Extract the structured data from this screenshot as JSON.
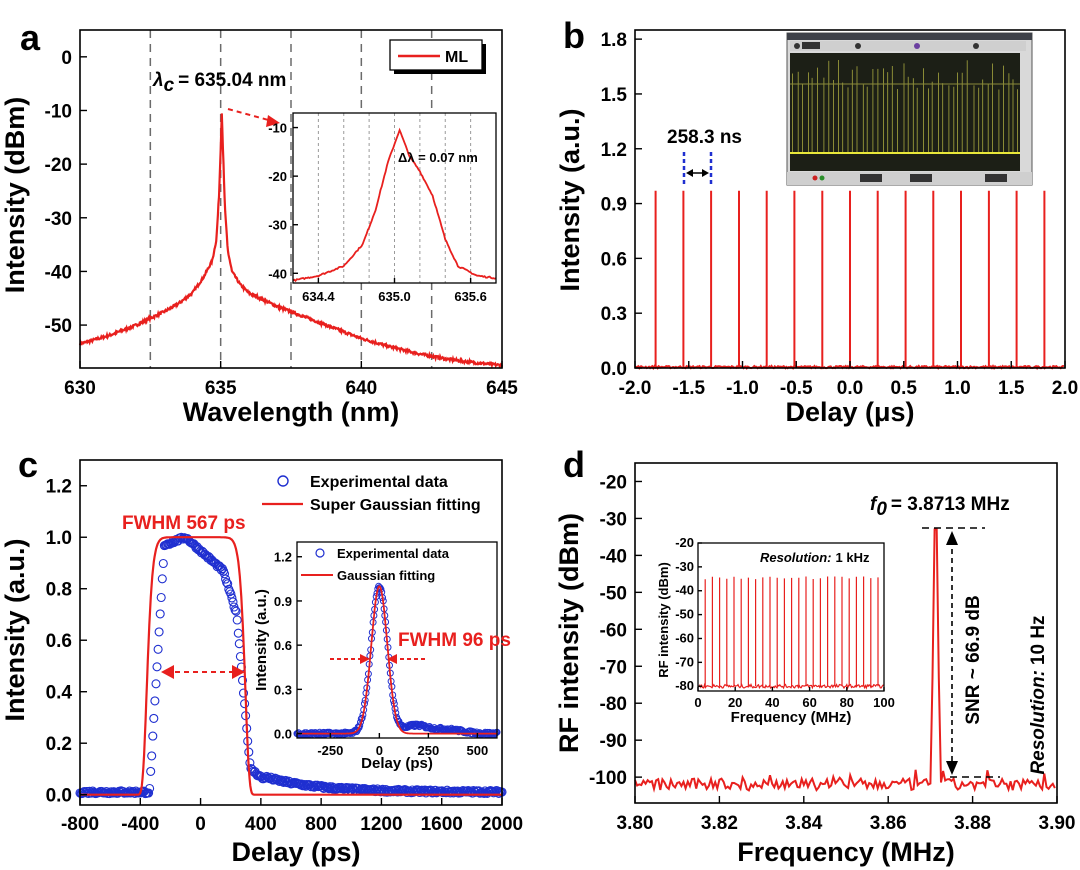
{
  "colors": {
    "data_red": "#e8201e",
    "data_blue": "#1f2fd0",
    "guide_gray": "#6b6b6b"
  },
  "chart_data": [
    {
      "panel": "a",
      "type": "line",
      "xlabel": "Wavelength (nm)",
      "ylabel": "Intensity (dBm)",
      "xlim": [
        630,
        645
      ],
      "ylim": [
        -58,
        5
      ],
      "xticks": [
        630,
        635,
        640,
        645
      ],
      "yticks": [
        0,
        -10,
        -20,
        -30,
        -40,
        -50
      ],
      "dashed_verticals": [
        632.5,
        635,
        637.5,
        640,
        642.5
      ],
      "series": [
        {
          "name": "ML",
          "x": [
            630,
            631,
            632,
            633,
            633.5,
            634,
            634.4,
            634.7,
            634.85,
            634.95,
            635.04,
            635.15,
            635.25,
            635.4,
            635.7,
            636,
            637,
            638,
            639,
            640,
            641,
            642,
            643,
            644,
            645
          ],
          "y": [
            -53.5,
            -52,
            -50,
            -47.5,
            -46,
            -44,
            -41,
            -38,
            -34,
            -25,
            -10.5,
            -28,
            -36,
            -40,
            -42.5,
            -44,
            -46.5,
            -48.5,
            -50.5,
            -52.5,
            -54,
            -55.3,
            -56.3,
            -57,
            -57.5
          ]
        }
      ],
      "annotations": {
        "peak_label": "= 635.04 nm",
        "lambda_symbol": "λ",
        "lambda_sub": "c"
      },
      "inset": {
        "xlim": [
          634.2,
          635.8
        ],
        "ylim": [
          -42,
          -7
        ],
        "xticks": [
          634.4,
          635.0,
          635.6
        ],
        "yticks": [
          -10,
          -20,
          -30,
          -40
        ],
        "x": [
          634.2,
          634.4,
          634.6,
          634.75,
          634.85,
          634.95,
          635.04,
          635.12,
          635.2,
          635.3,
          635.4,
          635.5,
          635.65,
          635.8
        ],
        "y": [
          -41.5,
          -40.5,
          -38.5,
          -34,
          -27,
          -17,
          -10.5,
          -16,
          -19,
          -24,
          -33,
          -38.5,
          -40.5,
          -41
        ],
        "label": "Δλ = 0.07 nm"
      }
    },
    {
      "panel": "b",
      "type": "line",
      "xlabel": "Delay (μs)",
      "ylabel": "Intensity (a.u.)",
      "xlim": [
        -2.0,
        2.0
      ],
      "ylim": [
        0,
        1.85
      ],
      "xticks": [
        -2.0,
        -1.5,
        -1.0,
        -0.5,
        0.0,
        0.5,
        1.0,
        1.5,
        2.0
      ],
      "yticks": [
        0.0,
        0.3,
        0.6,
        0.9,
        1.2,
        1.5,
        1.8
      ],
      "pulse_positions": [
        -1.808,
        -1.55,
        -1.292,
        -1.033,
        -0.775,
        -0.517,
        -0.258,
        0.0,
        0.258,
        0.517,
        0.775,
        1.033,
        1.292,
        1.55,
        1.808
      ],
      "pulse_height": 0.97,
      "period_label": "258.3 ns"
    },
    {
      "panel": "c",
      "type": "line",
      "xlabel": "Delay (ps)",
      "ylabel": "Intensity (a.u.)",
      "xlim": [
        -800,
        2000
      ],
      "ylim": [
        -0.04,
        1.3
      ],
      "xticks": [
        -800,
        -400,
        0,
        400,
        800,
        1200,
        1600,
        2000
      ],
      "yticks": [
        0.0,
        0.2,
        0.4,
        0.6,
        0.8,
        1.0,
        1.2
      ],
      "series": [
        {
          "name": "Experimental data"
        },
        {
          "name": "Super Gaussian fitting"
        }
      ],
      "fwhm_label": "FWHM 567 ps",
      "inset": {
        "xlim": [
          -420,
          600
        ],
        "ylim": [
          -0.03,
          1.3
        ],
        "xticks": [
          -250,
          0,
          250,
          500
        ],
        "yticks": [
          0.0,
          0.3,
          0.6,
          0.9,
          1.2
        ],
        "xlabel": "Delay (ps)",
        "ylabel": "Intensity (a.u.)",
        "series": [
          {
            "name": "Experimental data"
          },
          {
            "name": "Gaussian fitting"
          }
        ],
        "fwhm_label": "FWHM 96 ps"
      }
    },
    {
      "panel": "d",
      "type": "line",
      "xlabel": "Frequency (MHz)",
      "ylabel": "RF intensity (dBm)",
      "xlim": [
        3.8,
        3.9
      ],
      "ylim": [
        -107,
        -15
      ],
      "xticks": [
        3.8,
        3.82,
        3.84,
        3.86,
        3.88,
        3.9
      ],
      "xtick_labels": [
        "3.80",
        "3.82",
        "3.84",
        "3.86",
        "3.88",
        "3.90"
      ],
      "yticks": [
        -20,
        -30,
        -40,
        -50,
        -60,
        -70,
        -80,
        -90,
        -100
      ],
      "peak_freq": 3.8713,
      "peak_level": -33,
      "noise_floor": -102,
      "f0_label": "= 3.8713 MHz",
      "f0_symbol": "f",
      "f0_sub": "0",
      "snr_label": "SNR ~ 66.9 dB",
      "resolution_label": "Resolution:",
      "resolution_value": "10 Hz",
      "inset": {
        "xlim": [
          0,
          100
        ],
        "ylim": [
          -82,
          -20
        ],
        "xticks": [
          0,
          20,
          40,
          60,
          80,
          100
        ],
        "yticks": [
          -20,
          -30,
          -40,
          -50,
          -60,
          -70,
          -80
        ],
        "xlabel": "Frequency (MHz)",
        "ylabel": "RF intensity (dBm)",
        "comb_spacing": 3.8713,
        "comb_top": -34,
        "comb_floor": -80,
        "resolution_label": "Resolution:",
        "resolution_value": "1 kHz"
      }
    }
  ]
}
